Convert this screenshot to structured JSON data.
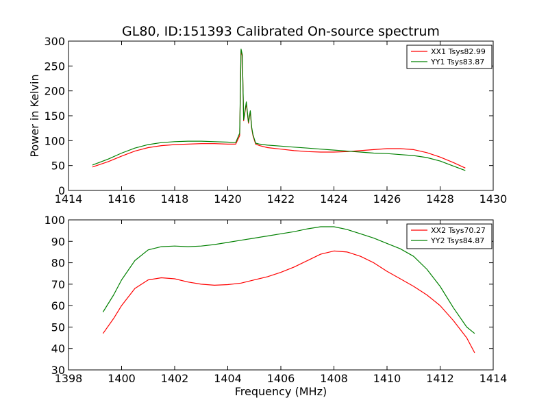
{
  "figure": {
    "title": "GL80, ID:151393 Calibrated On-source spectrum",
    "xlabel": "Frequency (MHz)"
  },
  "chart_data": [
    {
      "type": "line",
      "title": "GL80, ID:151393 Calibrated On-source spectrum",
      "xlabel": "",
      "ylabel": "Power in Kelvin",
      "xlim": [
        1414,
        1430
      ],
      "ylim": [
        0,
        300
      ],
      "xticks": [
        1414,
        1416,
        1418,
        1420,
        1422,
        1424,
        1426,
        1428,
        1430
      ],
      "yticks": [
        0,
        50,
        100,
        150,
        200,
        250,
        300
      ],
      "legend_position": "top-right",
      "series": [
        {
          "name": "XX1 Tsys82.99",
          "color": "#ff0000",
          "x": [
            1414.9,
            1415.5,
            1416,
            1416.5,
            1417,
            1417.5,
            1418,
            1418.5,
            1419,
            1419.5,
            1420,
            1420.3,
            1420.45,
            1420.5,
            1420.55,
            1420.6,
            1420.7,
            1420.78,
            1420.85,
            1420.9,
            1420.95,
            1421.05,
            1421.2,
            1421.5,
            1422,
            1422.5,
            1423,
            1423.5,
            1424,
            1424.5,
            1425,
            1425.5,
            1426,
            1426.5,
            1427,
            1427.5,
            1428,
            1428.5,
            1428.95
          ],
          "y": [
            47,
            58,
            69,
            79,
            86,
            90,
            92,
            93,
            94,
            94,
            93,
            93,
            110,
            281,
            270,
            140,
            175,
            135,
            158,
            125,
            110,
            93,
            90,
            86,
            83,
            80,
            78,
            77,
            77,
            78,
            80,
            82,
            84,
            84,
            82,
            76,
            67,
            56,
            45
          ]
        },
        {
          "name": "YY1 Tsys83.87",
          "color": "#008000",
          "x": [
            1414.9,
            1415.5,
            1416,
            1416.5,
            1417,
            1417.5,
            1418,
            1418.5,
            1419,
            1419.5,
            1420,
            1420.3,
            1420.45,
            1420.5,
            1420.55,
            1420.6,
            1420.7,
            1420.78,
            1420.85,
            1420.9,
            1420.95,
            1421.05,
            1421.2,
            1421.5,
            1422,
            1422.5,
            1423,
            1423.5,
            1424,
            1424.5,
            1425,
            1425.5,
            1426,
            1426.5,
            1427,
            1427.5,
            1428,
            1428.5,
            1428.95
          ],
          "y": [
            51,
            63,
            75,
            85,
            92,
            96,
            98,
            99,
            99,
            98,
            97,
            96,
            115,
            284,
            272,
            142,
            178,
            137,
            160,
            127,
            112,
            95,
            93,
            91,
            89,
            87,
            85,
            83,
            81,
            79,
            77,
            75,
            74,
            72,
            70,
            66,
            59,
            49,
            40
          ]
        }
      ]
    },
    {
      "type": "line",
      "title": "",
      "xlabel": "Frequency (MHz)",
      "ylabel": "",
      "xlim": [
        1398,
        1414
      ],
      "ylim": [
        30,
        100
      ],
      "xticks": [
        1398,
        1400,
        1402,
        1404,
        1406,
        1408,
        1410,
        1412,
        1414
      ],
      "yticks": [
        30,
        40,
        50,
        60,
        70,
        80,
        90,
        100
      ],
      "legend_position": "top-right",
      "series": [
        {
          "name": "XX2 Tsys70.27",
          "color": "#ff0000",
          "x": [
            1399.3,
            1399.7,
            1400,
            1400.5,
            1401,
            1401.5,
            1402,
            1402.5,
            1403,
            1403.5,
            1404,
            1404.5,
            1405,
            1405.5,
            1406,
            1406.5,
            1407,
            1407.5,
            1408,
            1408.5,
            1409,
            1409.5,
            1410,
            1410.5,
            1411,
            1411.5,
            1412,
            1412.5,
            1413,
            1413.3
          ],
          "y": [
            47,
            54,
            60,
            68,
            72,
            73,
            72.5,
            71,
            70,
            69.5,
            69.8,
            70.5,
            72,
            73.5,
            75.5,
            78,
            81,
            84,
            85.5,
            85,
            83,
            80,
            76,
            72.5,
            69,
            65,
            60,
            53,
            45,
            38
          ]
        },
        {
          "name": "YY2 Tsys84.87",
          "color": "#008000",
          "x": [
            1399.3,
            1399.7,
            1400,
            1400.5,
            1401,
            1401.5,
            1402,
            1402.5,
            1403,
            1403.5,
            1404,
            1404.5,
            1405,
            1405.5,
            1406,
            1406.5,
            1407,
            1407.5,
            1408,
            1408.5,
            1409,
            1409.5,
            1410,
            1410.5,
            1411,
            1411.5,
            1412,
            1412.5,
            1413,
            1413.3
          ],
          "y": [
            57,
            65,
            72,
            81,
            86,
            87.5,
            87.8,
            87.5,
            87.8,
            88.5,
            89.5,
            90.5,
            91.5,
            92.5,
            93.5,
            94.5,
            95.8,
            96.8,
            96.8,
            95.5,
            93.5,
            91.5,
            89,
            86.5,
            83,
            77,
            69,
            59,
            50,
            47
          ]
        }
      ]
    }
  ]
}
